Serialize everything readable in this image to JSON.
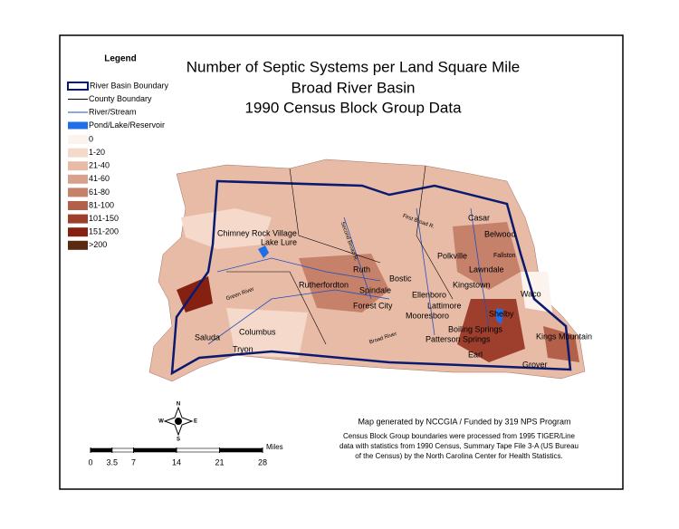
{
  "title_lines": [
    "Number of Septic Systems per Land Square Mile",
    "Broad River Basin",
    "1990 Census Block Group Data"
  ],
  "legend": {
    "title": "Legend",
    "features": [
      {
        "label": "River Basin Boundary",
        "color": "#0a1a6e"
      },
      {
        "label": "County Boundary",
        "color": "#000000"
      },
      {
        "label": "River/Stream",
        "color": "#1f4fbf"
      },
      {
        "label": "Pond/Lake/Reservoir",
        "color": "#1e6fe8"
      }
    ],
    "classes": [
      {
        "label": "0",
        "color": "#fdf3ee"
      },
      {
        "label": "1-20",
        "color": "#f5d9cb"
      },
      {
        "label": "21-40",
        "color": "#e8bba6"
      },
      {
        "label": "41-60",
        "color": "#d8a18c"
      },
      {
        "label": "61-80",
        "color": "#c6816a"
      },
      {
        "label": "81-100",
        "color": "#b3604b"
      },
      {
        "label": "101-150",
        "color": "#9e3f2e"
      },
      {
        "label": "151-200",
        "color": "#862112"
      },
      {
        "label": ">200",
        "color": "#5a2a12"
      }
    ]
  },
  "towns": [
    "Casar",
    "Belwood",
    "Fallston",
    "Polkville",
    "Lawndale",
    "Chimney Rock Village",
    "Lake Lure",
    "Ruth",
    "Rutherfordton",
    "Bostic",
    "Spindale",
    "Kingstown",
    "Ellenboro",
    "Waco",
    "Forest City",
    "Lattimore",
    "Mooresboro",
    "Shelby",
    "Columbus",
    "Boiling Springs",
    "Saluda",
    "Kings Mountain",
    "Patterson Springs",
    "Tryon",
    "Earl",
    "Grover"
  ],
  "rivers": [
    "Green River",
    "Broad River",
    "First Broad R.",
    "Second Broad R."
  ],
  "compass": [
    "N",
    "S",
    "E",
    "W"
  ],
  "scale": {
    "ticks": [
      0,
      3.5,
      7,
      14,
      21,
      28
    ],
    "unit": "Miles"
  },
  "credits": {
    "line": "Map generated by NCCGIA / Funded by 319 NPS Program",
    "note": [
      "Census Block Group boundaries were processed from 1995 TIGER/Line",
      "data with statistics from 1990 Census, Summary Tape File 3-A (US Bureau",
      "of the Census) by the North Carolina Center for Health Statistics."
    ]
  }
}
